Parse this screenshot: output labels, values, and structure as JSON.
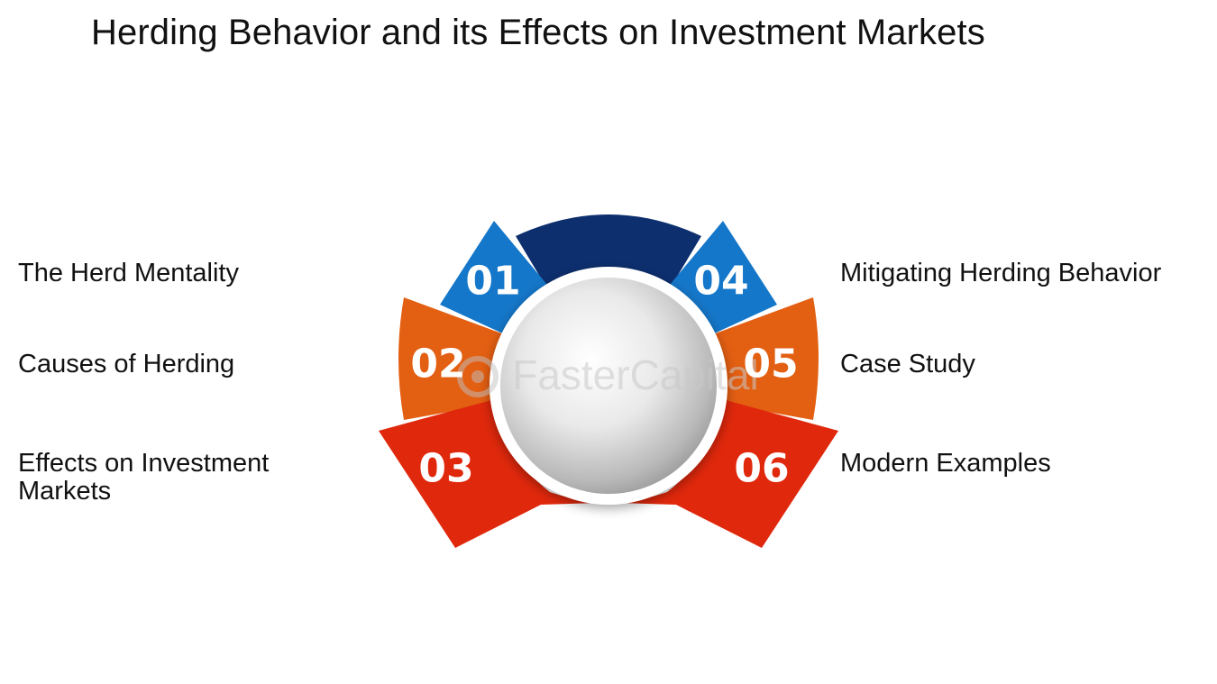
{
  "title": "Herding Behavior and its Effects on Investment Markets",
  "colors": {
    "dark_blue": "#0d2f6e",
    "blue": "#1577c9",
    "orange": "#e35f12",
    "red": "#e0280c",
    "ring": "#ffffff"
  },
  "segments": [
    {
      "number": "01",
      "label": "The Herd Mentality"
    },
    {
      "number": "02",
      "label": "Causes of Herding"
    },
    {
      "number": "03",
      "label": "Effects on Investment Markets"
    },
    {
      "number": "04",
      "label": "Mitigating Herding Behavior"
    },
    {
      "number": "05",
      "label": "Case Study"
    },
    {
      "number": "06",
      "label": "Modern Examples"
    }
  ],
  "watermark": "FasterCapital"
}
